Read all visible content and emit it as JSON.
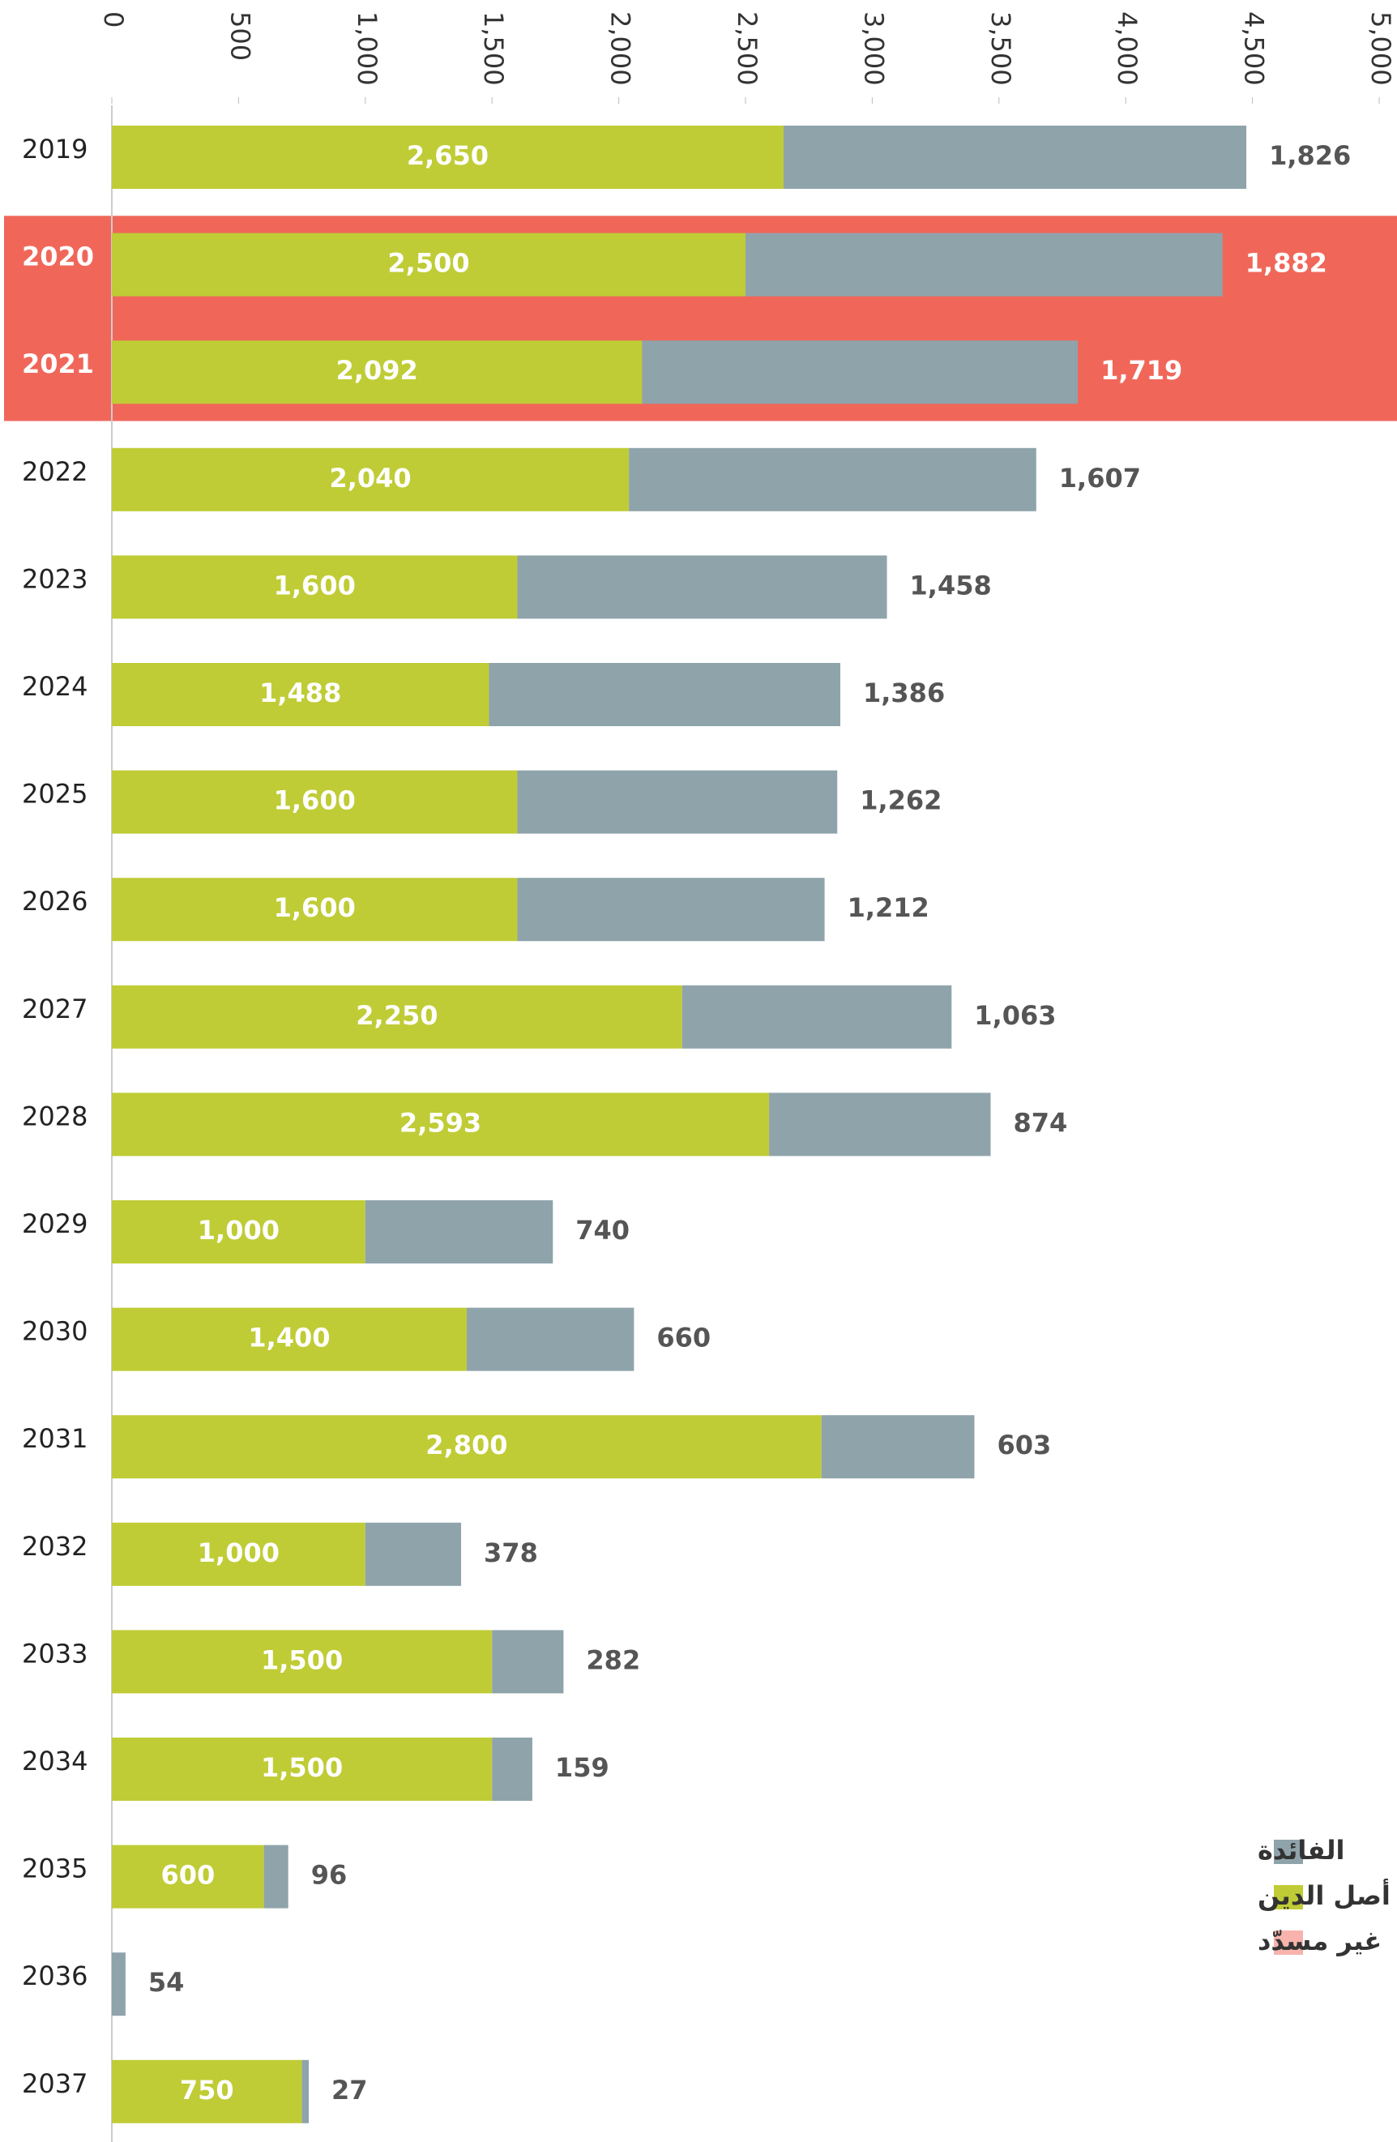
{
  "chart_data": {
    "type": "stacked-barh",
    "categories": [
      "2019",
      "2020",
      "2021",
      "2022",
      "2023",
      "2024",
      "2025",
      "2026",
      "2027",
      "2028",
      "2029",
      "2030",
      "2031",
      "2032",
      "2033",
      "2034",
      "2035",
      "2036",
      "2037"
    ],
    "series": [
      {
        "name": "أصل الدين",
        "color": "#bfcc35",
        "values": [
          2650,
          2500,
          2092,
          2040,
          1600,
          1488,
          1600,
          1600,
          2250,
          2593,
          1000,
          1400,
          2800,
          1000,
          1500,
          1500,
          600,
          null,
          750
        ],
        "value_labels": [
          "2,650",
          "2,500",
          "2,092",
          "2,040",
          "1,600",
          "1,488",
          "1,600",
          "1,600",
          "2,250",
          "2,593",
          "1,000",
          "1,400",
          "2,800",
          "1,000",
          "1,500",
          "1,500",
          "600",
          null,
          "750"
        ]
      },
      {
        "name": "الفائدة",
        "color": "#8fa3ab",
        "values": [
          1826,
          1882,
          1719,
          1607,
          1458,
          1386,
          1262,
          1212,
          1063,
          874,
          740,
          660,
          603,
          378,
          282,
          159,
          96,
          54,
          27
        ],
        "value_labels": [
          "1,826",
          "1,882",
          "1,719",
          "1,607",
          "1,458",
          "1,386",
          "1,262",
          "1,212",
          "1,063",
          "874",
          "740",
          "660",
          "603",
          "378",
          "282",
          "159",
          "96",
          "54",
          "27"
        ]
      }
    ],
    "highlight": {
      "name": "غير مسدّد",
      "color": "#f0675a",
      "categories": [
        "2020",
        "2021"
      ]
    },
    "xlim": [
      0,
      5000
    ],
    "xticks": [
      0,
      500,
      {
        "value": 1000,
        "label": "1,000"
      },
      {
        "value": 1500,
        "label": "1,500"
      },
      {
        "value": 2000,
        "label": "2,000"
      },
      {
        "value": 2500,
        "label": "2,500"
      },
      {
        "value": 3000,
        "label": "3,000"
      },
      {
        "value": 3500,
        "label": "3,500"
      },
      {
        "value": 4000,
        "label": "4,000"
      },
      {
        "value": 4500,
        "label": "4,500"
      },
      {
        "value": 5000,
        "label": "5,000"
      }
    ]
  }
}
